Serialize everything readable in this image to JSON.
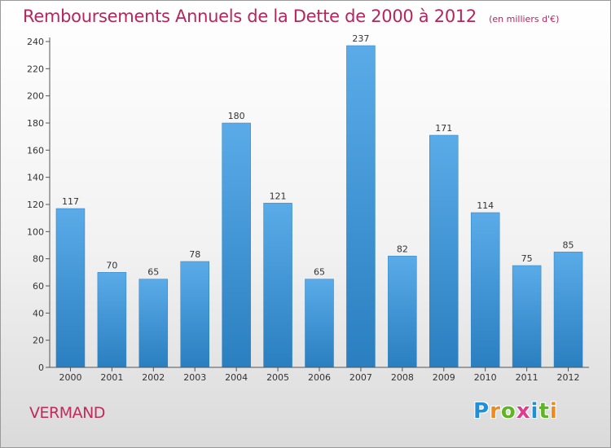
{
  "header": {
    "title": "Remboursements Annuels de la Dette de 2000 à 2012",
    "unit_note": "(en milliers d'€)"
  },
  "footer": {
    "place": "VERMAND",
    "logo_text": "Proxiti",
    "logo_colors": [
      "#1e8fd8",
      "#f08a1d",
      "#5fb526",
      "#e23a8c",
      "#1e8fd8",
      "#5fb526",
      "#f08a1d"
    ]
  },
  "colors": {
    "bar_light": "#5aabe8",
    "bar_dark": "#2a7fc0",
    "title": "#b5265c"
  },
  "chart_data": {
    "type": "bar",
    "title": "Remboursements Annuels de la Dette de 2000 à 2012",
    "subtitle": "(en milliers d'€)",
    "categories": [
      "2000",
      "2001",
      "2002",
      "2003",
      "2004",
      "2005",
      "2006",
      "2007",
      "2008",
      "2009",
      "2010",
      "2011",
      "2012"
    ],
    "values": [
      117,
      70,
      65,
      78,
      180,
      121,
      65,
      237,
      82,
      171,
      114,
      75,
      85
    ],
    "data_labels": [
      "117",
      "70",
      "65",
      "78",
      "180",
      "121",
      "65",
      "237",
      "82",
      "171",
      "114",
      "75",
      "85"
    ],
    "ylim": [
      0,
      240
    ],
    "yticks": [
      0,
      20,
      40,
      60,
      80,
      100,
      120,
      140,
      160,
      180,
      200,
      220,
      240
    ],
    "grid": false,
    "legend": "none"
  }
}
